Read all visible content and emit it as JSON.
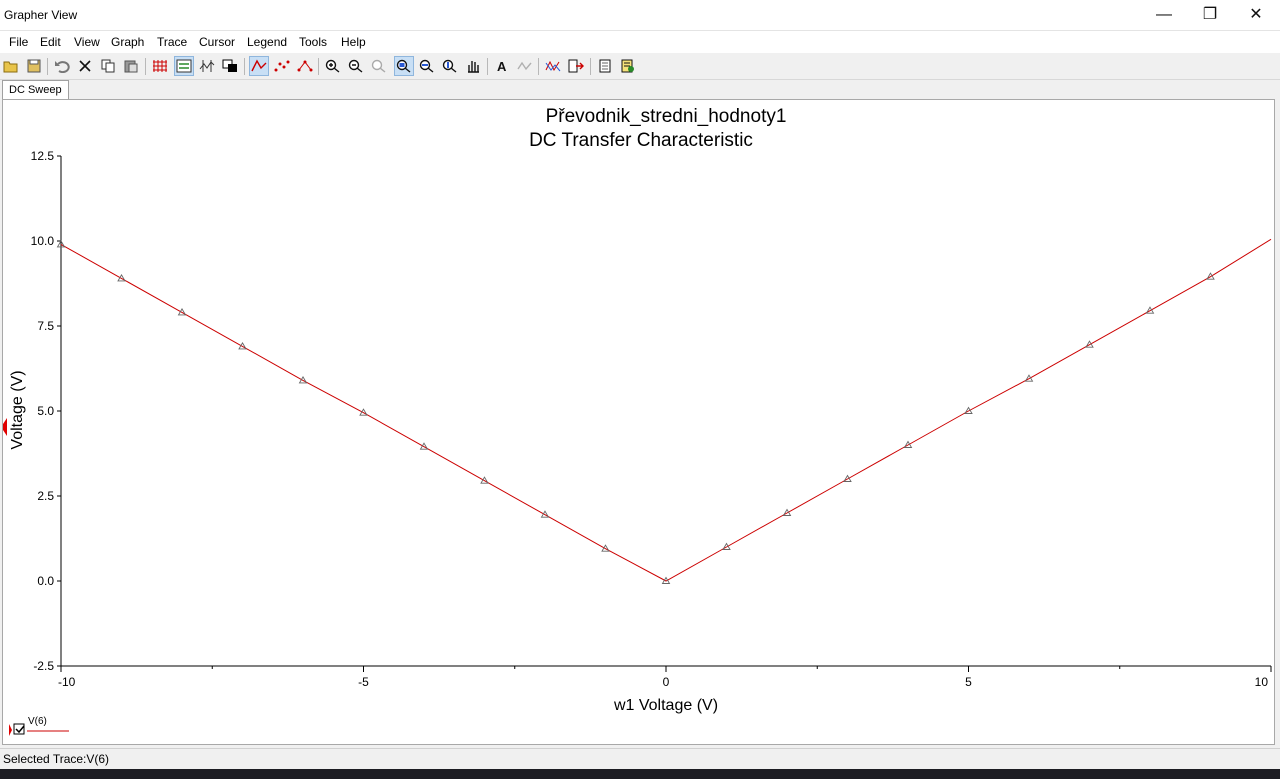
{
  "window": {
    "title": "Grapher View",
    "minimize_glyph": "—",
    "restore_glyph": "❐",
    "close_glyph": "✕"
  },
  "menu": [
    "File",
    "Edit",
    "View",
    "Graph",
    "Trace",
    "Cursor",
    "Legend",
    "Tools",
    "Help"
  ],
  "toolbar_icons": [
    "open-icon",
    "save-icon",
    "undo-icon",
    "cut-icon",
    "copy-icon",
    "paste-icon",
    "grid-icon",
    "legend-icon",
    "cursors-icon",
    "export-icon",
    "trace-line-icon",
    "trace-points-icon",
    "trace-line-points-icon",
    "zoom-in-icon",
    "zoom-out-icon",
    "zoom-reset-icon",
    "zoom-area-icon",
    "zoom-x-icon",
    "zoom-y-icon",
    "pan-icon",
    "text-icon",
    "diff-icon",
    "overlay-icon",
    "export-data-icon",
    "page-setup-icon",
    "properties-icon"
  ],
  "tab": {
    "label": "DC Sweep"
  },
  "chart_data": {
    "type": "line",
    "title": "Převodnik_stredni_hodnoty1",
    "subtitle": "DC Transfer Characteristic",
    "xlabel": "w1 Voltage (V)",
    "ylabel": "Voltage (V)",
    "xlim": [
      -10,
      10
    ],
    "ylim": [
      -2.5,
      12.5
    ],
    "xticks": [
      "-10",
      "-5",
      "0",
      "5",
      "10"
    ],
    "yticks": [
      "-2.5",
      "0.0",
      "2.5",
      "5.0",
      "7.5",
      "10.0",
      "12.5"
    ],
    "grid": false,
    "legend": "bottom-left",
    "series": [
      {
        "name": "V(6)",
        "color": "#cc0000",
        "marker": "triangle",
        "x": [
          -10,
          -9,
          -8,
          -7,
          -6,
          -5,
          -4,
          -3,
          -2,
          -1,
          0,
          1,
          2,
          3,
          4,
          5,
          6,
          7,
          8,
          9,
          10
        ],
        "y": [
          9.9,
          8.9,
          7.9,
          6.9,
          5.9,
          4.95,
          3.95,
          2.95,
          1.95,
          0.95,
          0.0,
          1.0,
          2.0,
          3.0,
          4.0,
          5.0,
          5.95,
          6.95,
          7.95,
          8.95,
          10.05
        ]
      }
    ]
  },
  "status": {
    "selected_trace": "Selected Trace:V(6)"
  }
}
